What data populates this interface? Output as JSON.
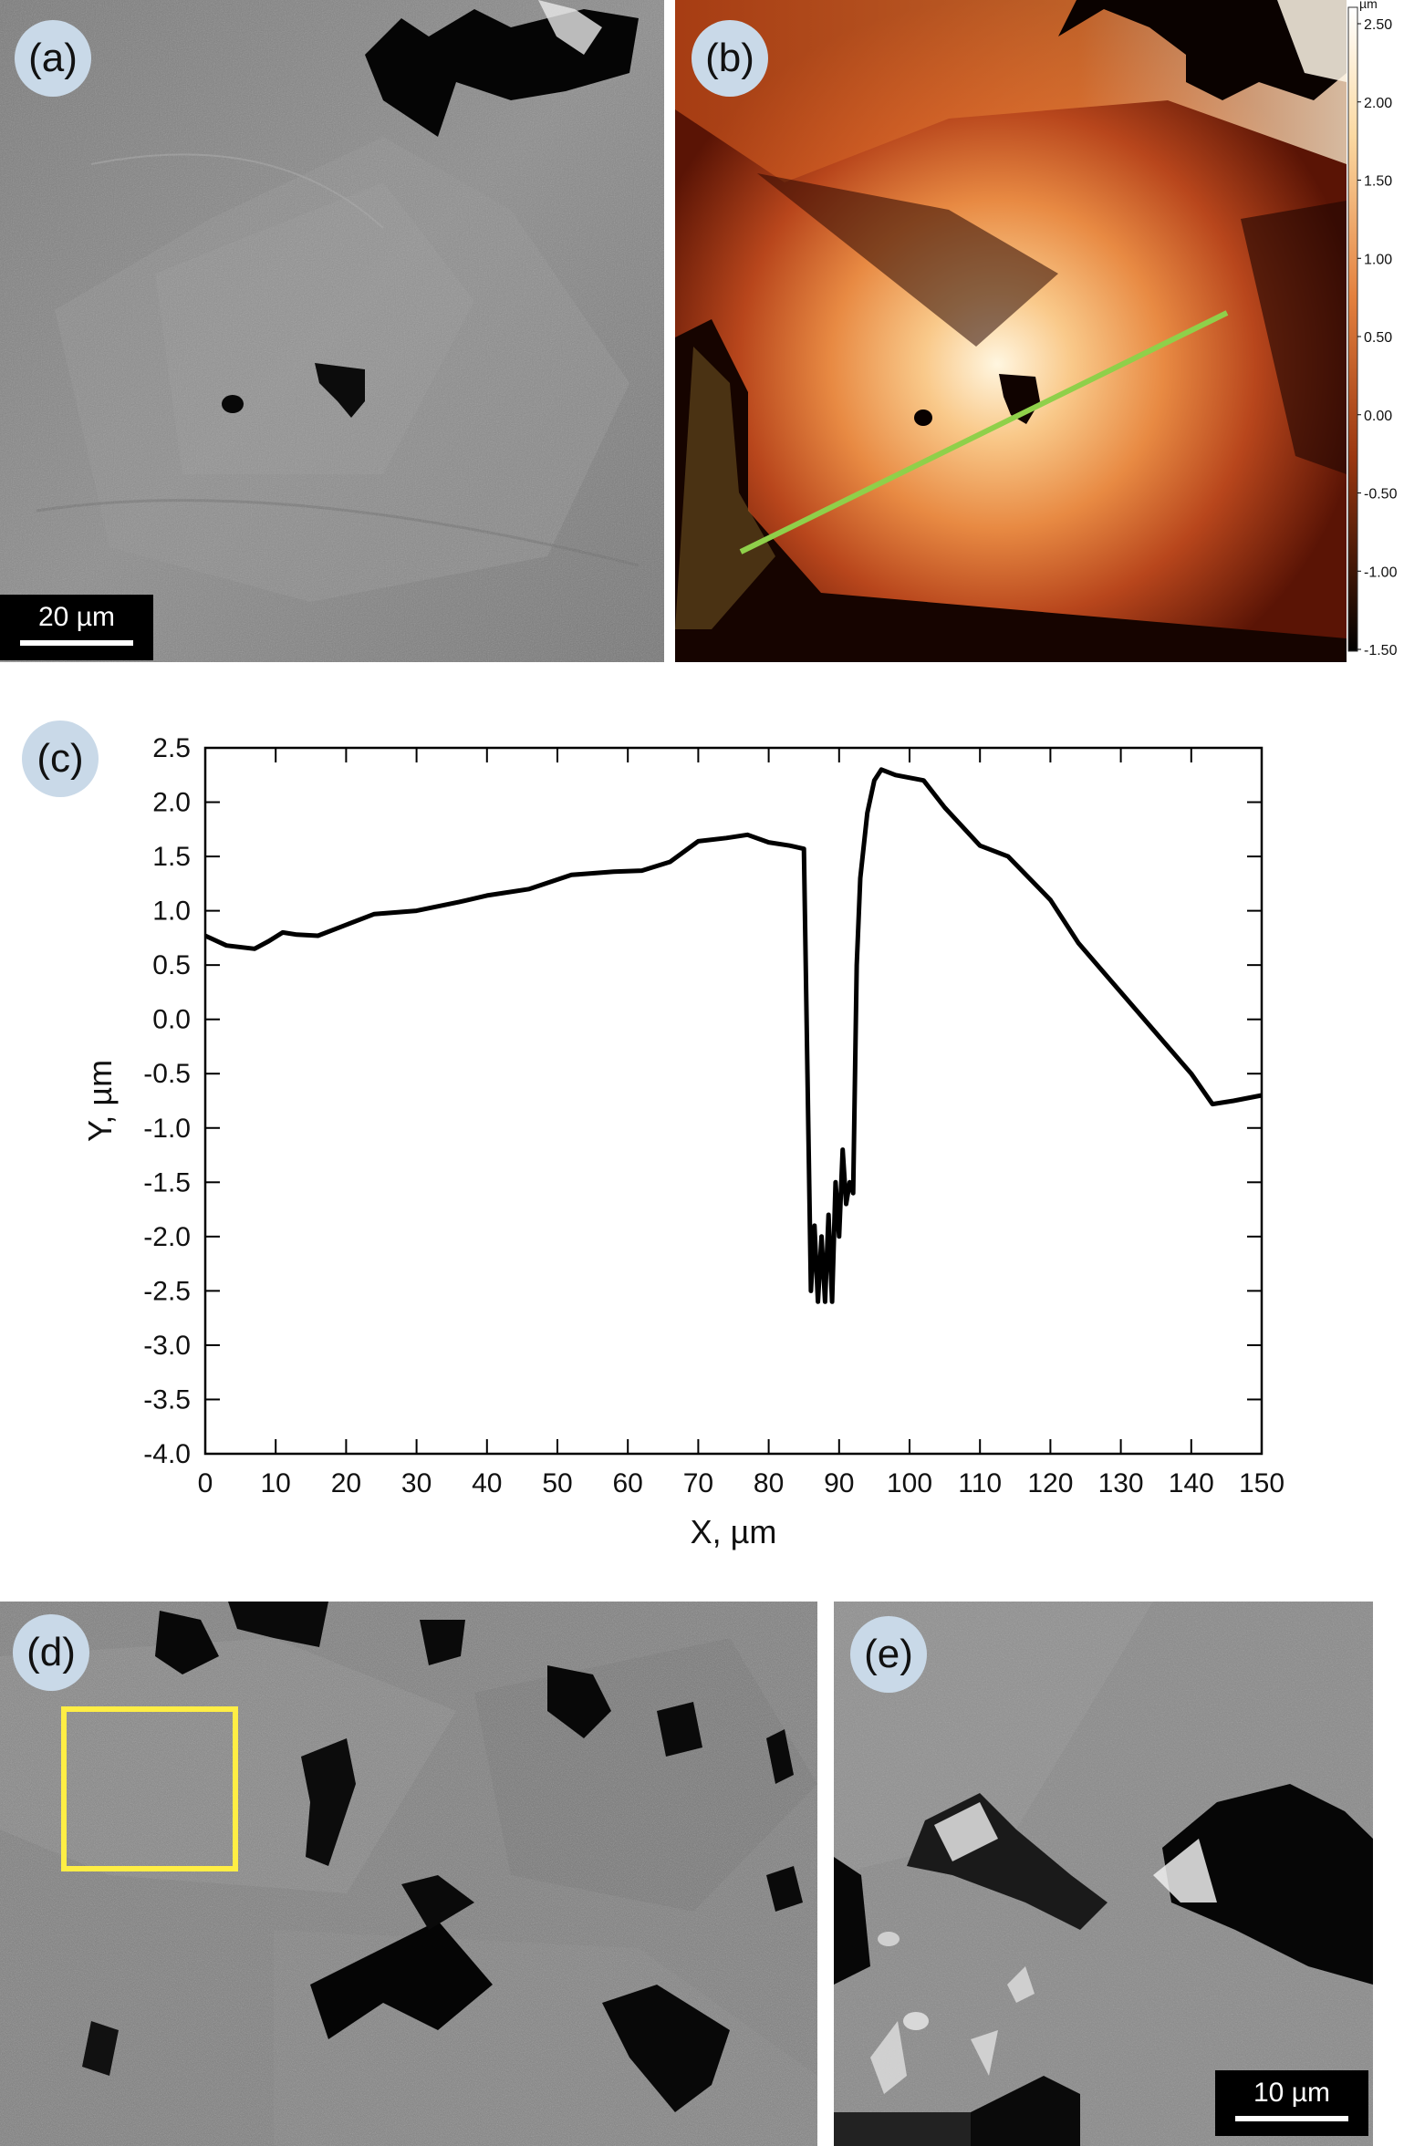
{
  "panels": {
    "a": {
      "label": "(a)",
      "scale_bar": "20 µm"
    },
    "b": {
      "label": "(b)",
      "colorbar": {
        "unit": "µm",
        "ticks": [
          "2.50",
          "2.00",
          "1.50",
          "1.00",
          "0.50",
          "0.00",
          "-0.50",
          "-1.00",
          "-1.50"
        ]
      }
    },
    "c": {
      "label": "(c)"
    },
    "d": {
      "label": "(d)"
    },
    "e": {
      "label": "(e)",
      "scale_bar": "10 µm"
    }
  },
  "colors": {
    "profile_line": "#8fd04a",
    "roi_box": "#ffee44",
    "curve": "#000000"
  },
  "chart_data": {
    "type": "line",
    "xlabel": "X, µm",
    "ylabel": "Y, µm",
    "xlim": [
      0,
      150
    ],
    "ylim": [
      -4.0,
      2.5
    ],
    "xticks": [
      0,
      10,
      20,
      30,
      40,
      50,
      60,
      70,
      80,
      90,
      100,
      110,
      120,
      130,
      140,
      150
    ],
    "yticks": [
      "2.5",
      "2.0",
      "1.5",
      "1.0",
      "0.5",
      "0.0",
      "-0.5",
      "-1.0",
      "-1.5",
      "-2.0",
      "-2.5",
      "-3.0",
      "-3.5",
      "-4.0"
    ],
    "x": [
      0,
      3,
      7,
      9,
      11,
      13,
      16,
      20,
      24,
      30,
      36,
      40,
      46,
      52,
      58,
      62,
      66,
      70,
      74,
      77,
      80,
      83,
      85,
      85.5,
      86,
      86.5,
      87,
      87.5,
      88,
      88.5,
      89,
      89.5,
      90,
      90.5,
      91,
      91.5,
      92,
      92.5,
      93,
      94,
      95,
      96,
      98,
      102,
      105,
      110,
      114,
      120,
      124,
      128,
      132,
      136,
      140,
      143,
      146,
      150
    ],
    "y": [
      0.77,
      0.68,
      0.65,
      0.72,
      0.8,
      0.78,
      0.77,
      0.87,
      0.97,
      1.0,
      1.08,
      1.14,
      1.2,
      1.33,
      1.36,
      1.37,
      1.45,
      1.64,
      1.67,
      1.7,
      1.63,
      1.6,
      1.57,
      -0.5,
      -2.5,
      -1.9,
      -2.6,
      -2.0,
      -2.6,
      -1.8,
      -2.6,
      -1.5,
      -2.0,
      -1.2,
      -1.7,
      -1.5,
      -1.6,
      0.5,
      1.3,
      1.9,
      2.2,
      2.3,
      2.25,
      2.2,
      1.95,
      1.6,
      1.5,
      1.1,
      0.7,
      0.4,
      0.1,
      -0.2,
      -0.5,
      -0.78,
      -0.75,
      -0.7
    ]
  }
}
